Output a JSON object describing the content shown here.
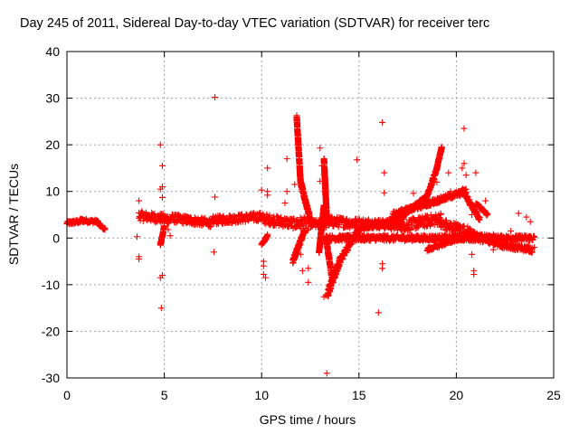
{
  "chart_data": {
    "type": "scatter",
    "title": "Day 245 of 2011, Sidereal Day-to-day VTEC variation (SDTVAR) for receiver terc",
    "xlabel": "GPS time / hours",
    "ylabel": "SDTVAR / TECUs",
    "xlim": [
      0,
      25
    ],
    "ylim": [
      -30,
      40
    ],
    "xticks": [
      0,
      5,
      10,
      15,
      20,
      25
    ],
    "yticks": [
      -30,
      -20,
      -10,
      0,
      10,
      20,
      30,
      40
    ],
    "grid": true,
    "marker": "+",
    "color": "#ff0000",
    "band_segments": [
      {
        "x": [
          0.0,
          0.7
        ],
        "y": [
          3.2,
          3.6
        ],
        "spread": 0.8
      },
      {
        "x": [
          0.7,
          1.6
        ],
        "y": [
          3.8,
          3.5
        ],
        "spread": 0.8
      },
      {
        "x": [
          1.6,
          1.95
        ],
        "y": [
          3.0,
          1.9
        ],
        "spread": 0.6
      },
      {
        "x": [
          3.7,
          5.3
        ],
        "y": [
          4.8,
          4.0
        ],
        "spread": 2.0
      },
      {
        "x": [
          5.3,
          7.5
        ],
        "y": [
          4.3,
          3.2
        ],
        "spread": 1.8
      },
      {
        "x": [
          7.5,
          10.0
        ],
        "y": [
          3.8,
          4.6
        ],
        "spread": 1.8
      },
      {
        "x": [
          10.0,
          11.8
        ],
        "y": [
          4.2,
          3.0
        ],
        "spread": 2.2
      },
      {
        "x": [
          11.8,
          12.6
        ],
        "y": [
          3.2,
          3.0
        ],
        "spread": 2.8
      },
      {
        "x": [
          12.6,
          13.3
        ],
        "y": [
          3.0,
          3.0
        ],
        "spread": 1.8
      },
      {
        "x": [
          13.3,
          15.5
        ],
        "y": [
          3.6,
          3.0
        ],
        "spread": 2.2
      },
      {
        "x": [
          15.5,
          17.5
        ],
        "y": [
          3.2,
          2.5
        ],
        "spread": 2.0
      },
      {
        "x": [
          17.5,
          19.2
        ],
        "y": [
          2.8,
          4.2
        ],
        "spread": 2.5
      },
      {
        "x": [
          19.2,
          20.8
        ],
        "y": [
          3.0,
          1.0
        ],
        "spread": 2.5
      },
      {
        "x": [
          20.8,
          22.3
        ],
        "y": [
          0.5,
          -1.0
        ],
        "spread": 2.0
      },
      {
        "x": [
          22.3,
          23.9
        ],
        "y": [
          -1.5,
          -2.5
        ],
        "spread": 1.2
      },
      {
        "x": [
          13.3,
          24.0
        ],
        "y": [
          0.0,
          0.0
        ],
        "spread": 1.2
      }
    ],
    "curve_segments": [
      {
        "x": [
          11.8,
          12.0
        ],
        "y": [
          26.0,
          12.0
        ],
        "spread": 0.8
      },
      {
        "x": [
          12.0,
          12.55
        ],
        "y": [
          12.0,
          3.0
        ],
        "spread": 1.2
      },
      {
        "x": [
          11.6,
          12.2
        ],
        "y": [
          -5.0,
          1.5
        ],
        "spread": 1.0
      },
      {
        "x": [
          13.2,
          13.35
        ],
        "y": [
          17.0,
          4.0
        ],
        "spread": 0.8
      },
      {
        "x": [
          13.4,
          14.0
        ],
        "y": [
          -12.0,
          -5.0
        ],
        "spread": 1.8
      },
      {
        "x": [
          14.0,
          15.0
        ],
        "y": [
          -5.0,
          2.0
        ],
        "spread": 1.5
      },
      {
        "x": [
          15.0,
          17.3
        ],
        "y": [
          2.0,
          4.2
        ],
        "spread": 1.0
      },
      {
        "x": [
          17.3,
          18.5
        ],
        "y": [
          5.0,
          9.0
        ],
        "spread": 0.8
      },
      {
        "x": [
          18.5,
          19.0
        ],
        "y": [
          9.0,
          15.0
        ],
        "spread": 0.8
      },
      {
        "x": [
          19.0,
          19.25
        ],
        "y": [
          15.0,
          19.5
        ],
        "spread": 0.6
      },
      {
        "x": [
          16.7,
          20.5
        ],
        "y": [
          5.0,
          10.0
        ],
        "spread": 1.2
      },
      {
        "x": [
          20.3,
          21.2
        ],
        "y": [
          10.5,
          4.0
        ],
        "spread": 1.0
      },
      {
        "x": [
          21.0,
          21.6
        ],
        "y": [
          7.5,
          5.0
        ],
        "spread": 0.6
      },
      {
        "x": [
          18.5,
          20.5
        ],
        "y": [
          -2.5,
          0.5
        ],
        "spread": 0.8
      },
      {
        "x": [
          10.0,
          10.3
        ],
        "y": [
          -1.5,
          0.5
        ],
        "spread": 0.6
      },
      {
        "x": [
          4.8,
          5.0
        ],
        "y": [
          -1.5,
          2.5
        ],
        "spread": 0.4
      },
      {
        "x": [
          12.95,
          13.2
        ],
        "y": [
          -3.0,
          7.0
        ],
        "spread": 0.4
      },
      {
        "x": [
          13.3,
          13.6
        ],
        "y": [
          0.0,
          -8.0
        ],
        "spread": 1.0
      }
    ],
    "outliers": [
      [
        3.7,
        -4.5
      ],
      [
        3.7,
        -4.0
      ],
      [
        3.6,
        0.3
      ],
      [
        3.7,
        8.0
      ],
      [
        4.8,
        20.0
      ],
      [
        4.9,
        15.5
      ],
      [
        4.9,
        11.0
      ],
      [
        4.8,
        10.5
      ],
      [
        4.9,
        8.7
      ],
      [
        4.8,
        -8.5
      ],
      [
        4.9,
        -8.0
      ],
      [
        4.85,
        -15.0
      ],
      [
        5.2,
        1.8
      ],
      [
        5.3,
        0.5
      ],
      [
        7.6,
        30.2
      ],
      [
        7.6,
        8.8
      ],
      [
        7.55,
        -3.0
      ],
      [
        10.0,
        10.3
      ],
      [
        10.3,
        15.0
      ],
      [
        10.3,
        9.2
      ],
      [
        10.3,
        10.0
      ],
      [
        10.1,
        -6.0
      ],
      [
        10.1,
        -7.8
      ],
      [
        10.2,
        -8.5
      ],
      [
        10.1,
        -5.0
      ],
      [
        11.3,
        17.0
      ],
      [
        11.3,
        10.0
      ],
      [
        11.2,
        7.5
      ],
      [
        11.7,
        11.5
      ],
      [
        12.0,
        -3.5
      ],
      [
        12.4,
        -6.5
      ],
      [
        12.4,
        -9.5
      ],
      [
        12.1,
        -7.0
      ],
      [
        13.0,
        19.3
      ],
      [
        13.1,
        15.5
      ],
      [
        13.0,
        12.2
      ],
      [
        13.2,
        13.6
      ],
      [
        13.3,
        -12.3
      ],
      [
        13.2,
        -12.6
      ],
      [
        13.35,
        -29.0
      ],
      [
        14.9,
        16.8
      ],
      [
        16.2,
        24.8
      ],
      [
        16.3,
        14.0
      ],
      [
        16.3,
        9.7
      ],
      [
        16.2,
        -5.5
      ],
      [
        16.2,
        -6.5
      ],
      [
        16.0,
        -16.0
      ],
      [
        17.8,
        9.6
      ],
      [
        18.8,
        7.5
      ],
      [
        19.0,
        12.0
      ],
      [
        19.6,
        14.0
      ],
      [
        19.7,
        10.0
      ],
      [
        20.4,
        23.5
      ],
      [
        20.4,
        16.0
      ],
      [
        20.3,
        15.0
      ],
      [
        20.5,
        13.5
      ],
      [
        21.0,
        14.0
      ],
      [
        20.7,
        7.0
      ],
      [
        20.8,
        5.0
      ],
      [
        20.8,
        -3.5
      ],
      [
        20.9,
        -7.0
      ],
      [
        20.9,
        -7.8
      ],
      [
        21.5,
        8.0
      ],
      [
        23.2,
        5.3
      ],
      [
        23.6,
        4.5
      ],
      [
        23.8,
        3.5
      ],
      [
        24.0,
        -2.0
      ],
      [
        23.7,
        -1.5
      ],
      [
        22.6,
        -1.0
      ],
      [
        21.9,
        -2.5
      ],
      [
        21.9,
        0.8
      ],
      [
        22.8,
        1.5
      ]
    ]
  }
}
